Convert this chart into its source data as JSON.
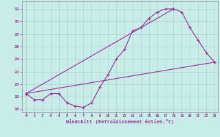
{
  "xlabel": "Windchill (Refroidissement éolien,°C)",
  "bg_color": "#c8ece8",
  "line_color": "#993399",
  "grid_color": "#b0d0cc",
  "xlim_min": -0.5,
  "xlim_max": 23.4,
  "ylim_min": 15.5,
  "ylim_max": 33.2,
  "xticks": [
    0,
    1,
    2,
    3,
    4,
    5,
    6,
    7,
    8,
    9,
    10,
    11,
    12,
    13,
    14,
    15,
    16,
    17,
    18,
    19,
    20,
    21,
    22,
    23
  ],
  "yticks": [
    16,
    18,
    20,
    22,
    24,
    26,
    28,
    30,
    32
  ],
  "curve_x": [
    0,
    1,
    2,
    3,
    4,
    5,
    6,
    7,
    8,
    9,
    10,
    11,
    12,
    13,
    14,
    15,
    16,
    17,
    18,
    19,
    20,
    21,
    22,
    23
  ],
  "curve_y": [
    18.5,
    17.5,
    17.5,
    18.5,
    18.5,
    17.0,
    16.5,
    16.3,
    17.0,
    19.5,
    21.5,
    24.0,
    25.5,
    28.5,
    29.0,
    30.5,
    31.5,
    32.0,
    32.0,
    31.5,
    29.0,
    27.0,
    25.0,
    23.5
  ],
  "line1_x": [
    0,
    23
  ],
  "line1_y": [
    18.5,
    23.5
  ],
  "line2_x": [
    0,
    18
  ],
  "line2_y": [
    18.5,
    32.0
  ]
}
